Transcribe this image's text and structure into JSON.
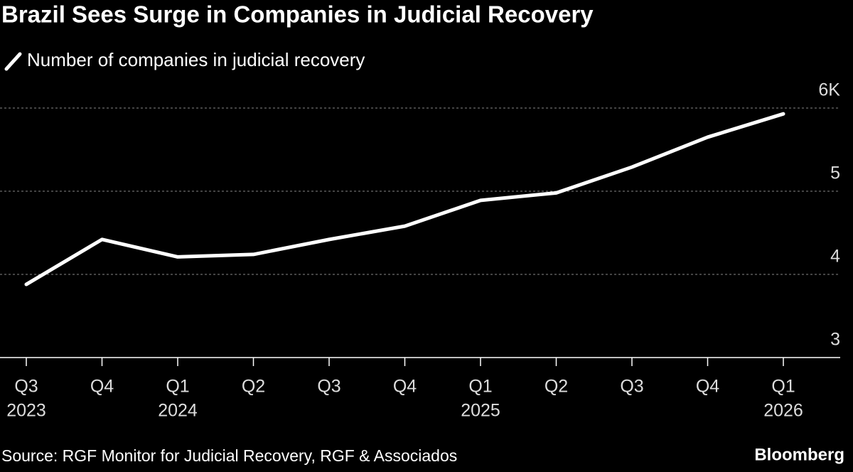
{
  "chart_data": {
    "type": "line",
    "title": "Brazil Sees Surge in Companies in Judicial Recovery",
    "categories": [
      "Q3",
      "Q4",
      "Q1",
      "Q2",
      "Q3",
      "Q4",
      "Q1",
      "Q2",
      "Q3",
      "Q4",
      "Q1"
    ],
    "category_years": [
      "2023",
      null,
      "2024",
      null,
      null,
      null,
      "2025",
      null,
      null,
      null,
      "2026"
    ],
    "series": [
      {
        "name": "Number of companies in judicial recovery",
        "color": "#ffffff",
        "values": [
          3.88,
          4.42,
          4.21,
          4.24,
          4.42,
          4.58,
          4.89,
          4.98,
          5.29,
          5.65,
          5.93
        ]
      }
    ],
    "ylim": [
      3,
      6.1
    ],
    "yticks": [
      3,
      4,
      5,
      {
        "value": 6,
        "label": "6K"
      }
    ],
    "grid": true,
    "source": "Source: RGF Monitor for Judicial Recovery, RGF & Associados",
    "brand": "Bloomberg"
  }
}
